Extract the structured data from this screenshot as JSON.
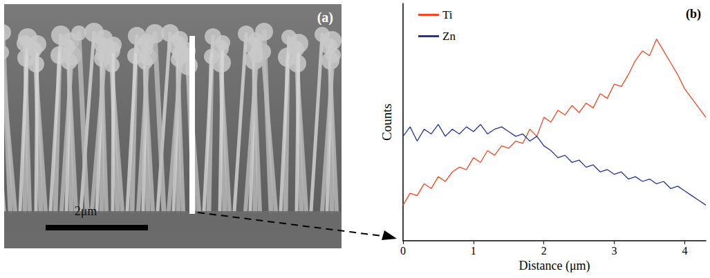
{
  "image_panel": {
    "panel_label": "(a)",
    "scale_bar_label": "2μm"
  },
  "chart_data": {
    "type": "line",
    "panel_label": "(b)",
    "x_label": "Distance (μm)",
    "y_label": "Counts",
    "x": [
      0,
      0.1,
      0.2,
      0.3,
      0.4,
      0.5,
      0.6,
      0.7,
      0.8,
      0.9,
      1,
      1.1,
      1.2,
      1.3,
      1.4,
      1.5,
      1.6,
      1.7,
      1.8,
      1.9,
      2,
      2.1,
      2.2,
      2.3,
      2.4,
      2.5,
      2.6,
      2.7,
      2.8,
      2.9,
      3,
      3.1,
      3.2,
      3.3,
      3.4,
      3.5,
      3.6,
      3.7,
      3.8,
      3.9,
      4,
      4.1,
      4.2,
      4.3
    ],
    "series": [
      {
        "name": "Ti",
        "color": "#f5461e",
        "values": [
          15,
          20,
          19,
          24,
          22,
          27,
          25,
          29,
          31,
          30,
          35,
          33,
          38,
          36,
          40,
          39,
          42,
          41,
          47,
          44,
          52,
          50,
          55,
          53,
          57,
          54,
          58,
          56,
          62,
          60,
          66,
          65,
          70,
          76,
          80,
          78,
          85,
          80,
          75,
          70,
          64,
          60,
          56,
          52
        ]
      },
      {
        "name": "Zn",
        "color": "#23339c",
        "values": [
          44,
          48,
          42,
          47,
          45,
          49,
          44,
          47,
          45,
          48,
          46,
          49,
          45,
          47,
          48,
          46,
          44,
          45,
          42,
          44,
          40,
          38,
          35,
          36,
          33,
          34,
          31,
          32,
          29,
          30,
          28,
          29,
          26,
          27,
          25,
          26,
          24,
          25,
          22,
          23,
          21,
          19,
          17,
          15
        ]
      }
    ],
    "xlim": [
      0,
      4.3
    ],
    "xticks": [
      0,
      1,
      2,
      3,
      4
    ],
    "ylim": [
      0,
      100
    ],
    "yticks": [],
    "tick_labels": "x",
    "grid": false,
    "legend": "upper left"
  }
}
